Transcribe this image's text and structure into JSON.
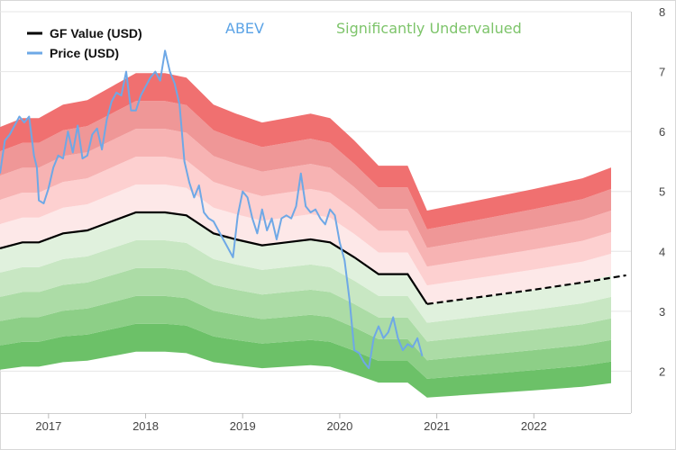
{
  "chart_data": {
    "type": "area",
    "title": "ABEV",
    "status": "Significantly Undervalued",
    "xlabel": "",
    "ylabel": "",
    "xlim": [
      2016.5,
      2023.0
    ],
    "ylim": [
      1.3,
      8.0
    ],
    "x_ticks": [
      {
        "value": 2017,
        "label": "2017"
      },
      {
        "value": 2018,
        "label": "2018"
      },
      {
        "value": 2019,
        "label": "2019"
      },
      {
        "value": 2020,
        "label": "2020"
      },
      {
        "value": 2021,
        "label": "2021"
      },
      {
        "value": 2022,
        "label": "2022"
      }
    ],
    "y_ticks": [
      {
        "value": 2,
        "label": "2"
      },
      {
        "value": 3,
        "label": "3"
      },
      {
        "value": 4,
        "label": "4"
      },
      {
        "value": 5,
        "label": "5"
      },
      {
        "value": 6,
        "label": "6"
      },
      {
        "value": 7,
        "label": "7"
      },
      {
        "value": 8,
        "label": "8"
      }
    ],
    "grid": true,
    "legend_position": "top-left",
    "legend": [
      {
        "name": "GF Value (USD)",
        "color": "#000000"
      },
      {
        "name": "Price (USD)",
        "color": "#6ea8e6"
      }
    ],
    "band_multipliers": [
      0.5,
      0.6,
      0.7,
      0.8,
      0.9,
      1.0,
      1.1,
      1.2,
      1.3,
      1.4,
      1.5
    ],
    "band_colors": [
      "#6cc168",
      "#8dcf87",
      "#acdca6",
      "#c8e7c3",
      "#e0f1dd",
      "#fde8e8",
      "#fdd0d0",
      "#f7b3b3",
      "#ef9797",
      "#f07070"
    ],
    "gf_value": {
      "x": [
        2016.5,
        2016.73,
        2016.9,
        2017.15,
        2017.4,
        2017.65,
        2017.9,
        2018.2,
        2018.42,
        2018.7,
        2018.93,
        2019.2,
        2019.45,
        2019.7,
        2019.9,
        2020.15,
        2020.4,
        2020.7,
        2020.9
      ],
      "y": [
        4.05,
        4.15,
        4.15,
        4.3,
        4.35,
        4.5,
        4.65,
        4.65,
        4.6,
        4.3,
        4.2,
        4.1,
        4.15,
        4.2,
        4.15,
        3.9,
        3.62,
        3.62,
        3.12
      ]
    },
    "gf_value_projection": {
      "x": [
        2020.9,
        2021.5,
        2022.0,
        2022.5,
        2022.95
      ],
      "y": [
        3.12,
        3.25,
        3.36,
        3.48,
        3.6
      ]
    },
    "price": {
      "x": [
        2016.5,
        2016.55,
        2016.6,
        2016.65,
        2016.7,
        2016.75,
        2016.8,
        2016.85,
        2016.88,
        2016.9,
        2016.95,
        2017.0,
        2017.05,
        2017.1,
        2017.15,
        2017.2,
        2017.25,
        2017.3,
        2017.35,
        2017.4,
        2017.45,
        2017.5,
        2017.55,
        2017.6,
        2017.65,
        2017.7,
        2017.75,
        2017.8,
        2017.85,
        2017.9,
        2017.95,
        2018.0,
        2018.05,
        2018.1,
        2018.15,
        2018.2,
        2018.25,
        2018.3,
        2018.35,
        2018.4,
        2018.45,
        2018.5,
        2018.55,
        2018.6,
        2018.65,
        2018.7,
        2018.75,
        2018.8,
        2018.85,
        2018.9,
        2018.95,
        2019.0,
        2019.05,
        2019.1,
        2019.15,
        2019.2,
        2019.25,
        2019.3,
        2019.35,
        2019.4,
        2019.45,
        2019.5,
        2019.55,
        2019.6,
        2019.65,
        2019.7,
        2019.75,
        2019.8,
        2019.85,
        2019.9,
        2019.95,
        2020.0,
        2020.05,
        2020.1,
        2020.15,
        2020.2,
        2020.25,
        2020.3,
        2020.35,
        2020.4,
        2020.45,
        2020.5,
        2020.55,
        2020.6,
        2020.65,
        2020.7,
        2020.75,
        2020.8,
        2020.85
      ],
      "y": [
        5.3,
        5.85,
        5.95,
        6.1,
        6.25,
        6.15,
        6.25,
        5.6,
        5.4,
        4.85,
        4.8,
        5.05,
        5.4,
        5.6,
        5.55,
        6.0,
        5.65,
        6.1,
        5.55,
        5.6,
        5.95,
        6.05,
        5.7,
        6.2,
        6.5,
        6.65,
        6.6,
        7.0,
        6.35,
        6.35,
        6.6,
        6.75,
        6.9,
        7.0,
        6.85,
        7.35,
        7.0,
        6.8,
        6.45,
        5.5,
        5.15,
        4.9,
        5.1,
        4.65,
        4.55,
        4.5,
        4.35,
        4.2,
        4.05,
        3.9,
        4.6,
        5.0,
        4.9,
        4.55,
        4.3,
        4.7,
        4.35,
        4.55,
        4.2,
        4.55,
        4.6,
        4.55,
        4.75,
        5.3,
        4.75,
        4.65,
        4.7,
        4.55,
        4.45,
        4.7,
        4.6,
        4.15,
        3.85,
        3.2,
        2.35,
        2.3,
        2.15,
        2.05,
        2.55,
        2.75,
        2.55,
        2.65,
        2.9,
        2.55,
        2.35,
        2.45,
        2.4,
        2.55,
        2.25
      ]
    }
  }
}
